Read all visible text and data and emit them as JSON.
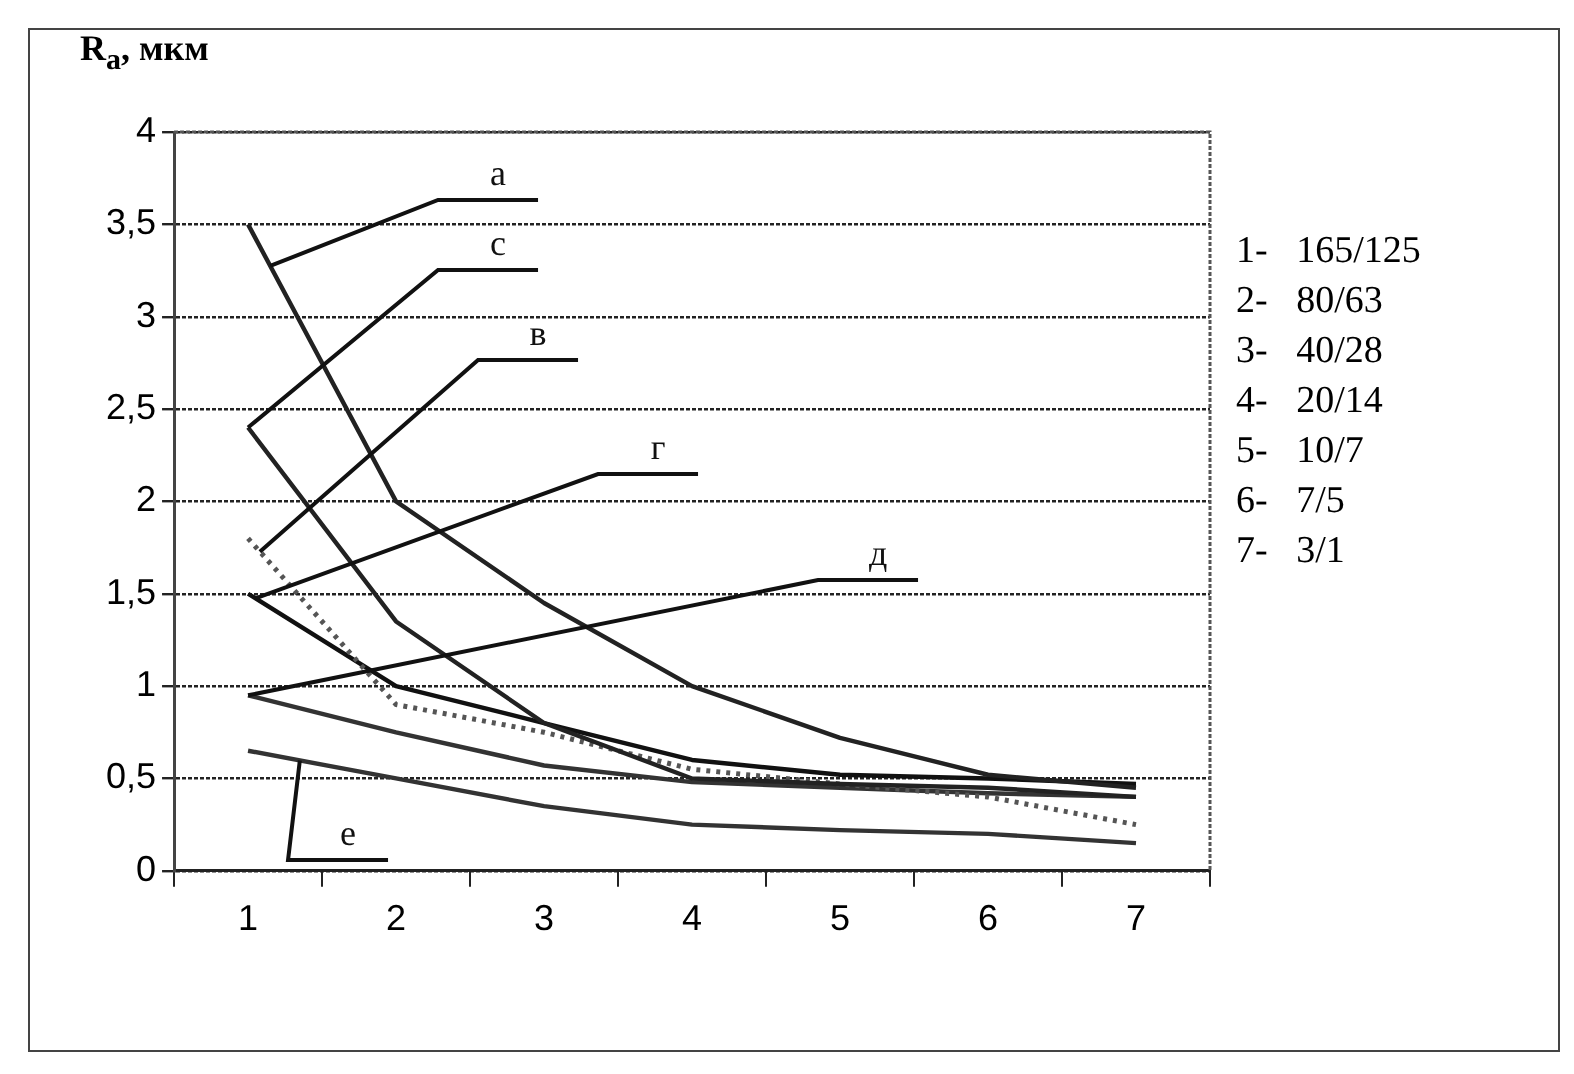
{
  "chart_data": {
    "type": "line",
    "ylabel": "R$_{a}$, мкм",
    "categories": [
      "1",
      "2",
      "3",
      "4",
      "5",
      "6",
      "7"
    ],
    "series": [
      {
        "name": "а",
        "color": "#222222",
        "values": [
          3.5,
          2.0,
          1.45,
          1.0,
          0.72,
          0.52,
          0.45
        ]
      },
      {
        "name": "с",
        "color": "#222222",
        "values": [
          2.4,
          1.35,
          0.8,
          0.5,
          0.47,
          0.45,
          0.4
        ]
      },
      {
        "name": "в",
        "color": "#555555",
        "line_style": "dotted",
        "values": [
          1.8,
          0.9,
          0.75,
          0.55,
          0.47,
          0.4,
          0.25
        ]
      },
      {
        "name": "г",
        "color": "#111111",
        "values": [
          1.5,
          1.0,
          0.8,
          0.6,
          0.52,
          0.5,
          0.47
        ]
      },
      {
        "name": "д",
        "color": "#333333",
        "values": [
          0.95,
          0.75,
          0.57,
          0.48,
          0.45,
          0.42,
          0.4
        ]
      },
      {
        "name": "е",
        "color": "#333333",
        "values": [
          0.65,
          0.5,
          0.35,
          0.25,
          0.22,
          0.2,
          0.15
        ]
      }
    ],
    "ylim": [
      0,
      4
    ],
    "yticks": [
      0,
      {
        "value": 0.5,
        "label": "0,5"
      },
      1,
      {
        "value": 1.5,
        "label": "1,5"
      },
      2,
      {
        "value": 2.5,
        "label": "2,5"
      },
      3,
      {
        "value": 3.5,
        "label": "3,5"
      },
      4
    ],
    "grid": "y",
    "legend": false,
    "marker": "none",
    "line_style": "solid",
    "annotations": [
      "1-   165/125",
      "2-   80/63",
      "3-   40/28",
      "4-   20/14",
      "5-   10/7",
      "6-   7/5",
      "7-   3/1"
    ]
  }
}
